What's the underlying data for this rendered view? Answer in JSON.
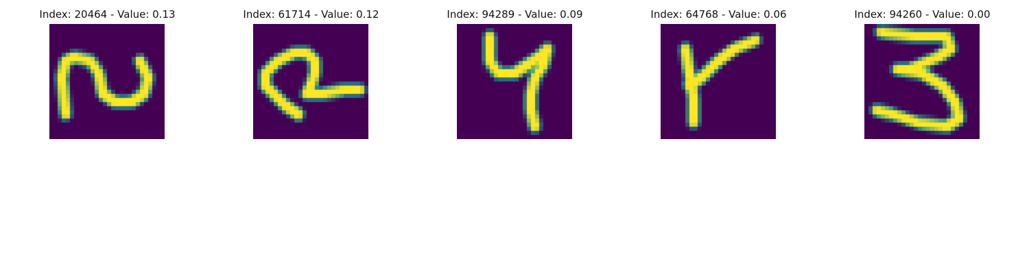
{
  "chart_data": [
    {
      "type": "heatmap",
      "title": "Index: 20464 - Value: 0.13",
      "glyph": "2",
      "colormap": "viridis",
      "colors": {
        "background": "#440154",
        "stroke": "#fde725",
        "edge": "#21918c"
      },
      "stroke": [
        [
          [
            4,
            22
          ],
          [
            3,
            13
          ],
          [
            4,
            9
          ],
          [
            6,
            8
          ],
          [
            10,
            9
          ],
          [
            12,
            12
          ],
          [
            13,
            17
          ],
          [
            16,
            19
          ],
          [
            20,
            19
          ],
          [
            23,
            17
          ],
          [
            24,
            13
          ],
          [
            22,
            9
          ]
        ]
      ]
    },
    {
      "type": "heatmap",
      "title": "Index: 61714 - Value: 0.12",
      "glyph": "2",
      "colormap": "viridis",
      "colors": {
        "background": "#440154",
        "stroke": "#fde725",
        "edge": "#21918c"
      },
      "stroke": [
        [
          [
            11,
            22
          ],
          [
            8,
            20
          ],
          [
            5,
            17
          ],
          [
            3,
            15
          ],
          [
            3,
            12
          ],
          [
            6,
            9
          ],
          [
            10,
            7
          ],
          [
            13,
            7
          ],
          [
            15,
            9
          ],
          [
            15,
            12
          ],
          [
            14,
            15
          ],
          [
            13,
            17
          ],
          [
            17,
            17
          ],
          [
            22,
            16
          ],
          [
            26,
            16
          ]
        ]
      ]
    },
    {
      "type": "heatmap",
      "title": "Index: 94289 - Value: 0.09",
      "glyph": "4",
      "colormap": "viridis",
      "colors": {
        "background": "#440154",
        "stroke": "#fde725",
        "edge": "#21918c"
      },
      "stroke": [
        [
          [
            8,
            3
          ],
          [
            8,
            9
          ],
          [
            10,
            12
          ],
          [
            14,
            12
          ],
          [
            17,
            10
          ],
          [
            20,
            8
          ],
          [
            22,
            6
          ],
          [
            21,
            10
          ],
          [
            19,
            13
          ],
          [
            18,
            17
          ],
          [
            18,
            21
          ],
          [
            19,
            25
          ]
        ]
      ]
    },
    {
      "type": "heatmap",
      "title": "Index: 64768 - Value: 0.06",
      "glyph": "Y",
      "colormap": "viridis",
      "colors": {
        "background": "#440154",
        "stroke": "#fde725",
        "edge": "#21918c"
      },
      "stroke": [
        [
          [
            6,
            6
          ],
          [
            7,
            12
          ],
          [
            8,
            18
          ],
          [
            8,
            24
          ]
        ],
        [
          [
            7,
            15
          ],
          [
            10,
            13
          ],
          [
            14,
            9
          ],
          [
            18,
            6
          ],
          [
            23,
            4
          ]
        ]
      ]
    },
    {
      "type": "heatmap",
      "title": "Index: 94260 - Value: 0.00",
      "glyph": "3",
      "colormap": "viridis",
      "colors": {
        "background": "#440154",
        "stroke": "#fde725",
        "edge": "#21918c"
      },
      "stroke": [
        [
          [
            4,
            2
          ],
          [
            12,
            3
          ],
          [
            20,
            3
          ],
          [
            21,
            6
          ],
          [
            18,
            8
          ],
          [
            11,
            11
          ],
          [
            8,
            11
          ],
          [
            14,
            12
          ],
          [
            19,
            15
          ],
          [
            22,
            19
          ],
          [
            23,
            23
          ],
          [
            20,
            25
          ],
          [
            13,
            24
          ],
          [
            7,
            22
          ],
          [
            3,
            21
          ]
        ]
      ]
    }
  ]
}
